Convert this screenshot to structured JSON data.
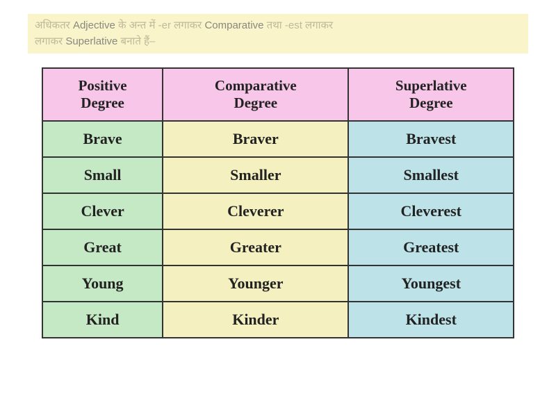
{
  "rule_text": {
    "part1": "अधिकतर ",
    "part2": "Adjective",
    "part3": " के अन्त में -er लगाकर ",
    "part4": "Comparative",
    "part5": " तथा -est लगाकर ",
    "part6": "Superlative",
    "part7": " बनाते हैं–"
  },
  "table": {
    "background_color": "#ffffff",
    "border_color": "#333333",
    "header_bg": "#f7c6e8",
    "col_bg": [
      "#c5e9c5",
      "#f4f0c0",
      "#bde3e8"
    ],
    "header_fontsize": 21,
    "cell_fontsize": 22,
    "font_weight": "bold",
    "columns": [
      "Positive Degree",
      "Comparative Degree",
      "Superlative Degree"
    ],
    "rows": [
      [
        "Brave",
        "Braver",
        "Bravest"
      ],
      [
        "Small",
        "Smaller",
        "Smallest"
      ],
      [
        "Clever",
        "Cleverer",
        "Cleverest"
      ],
      [
        "Great",
        "Greater",
        "Greatest"
      ],
      [
        "Young",
        "Younger",
        "Youngest"
      ],
      [
        "Kind",
        "Kinder",
        "Kindest"
      ]
    ]
  }
}
